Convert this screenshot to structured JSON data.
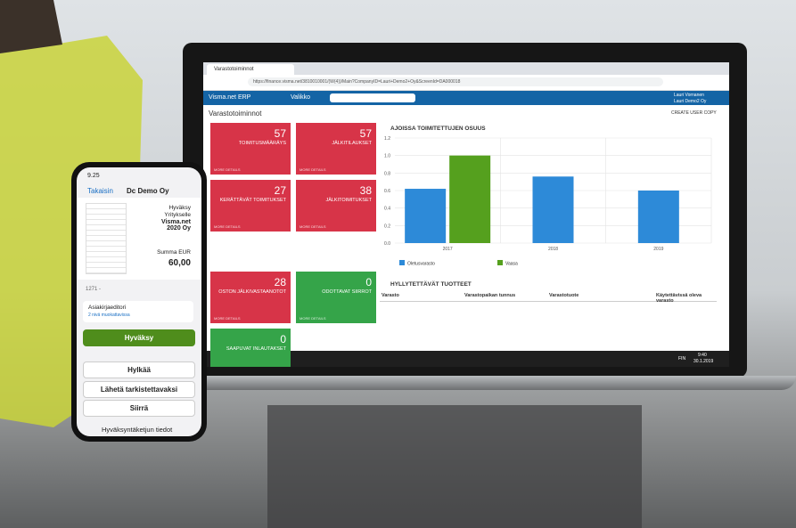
{
  "browser": {
    "tab": "Varastotoiminnot",
    "url": "https://finance.visma.net/3810010001/(W(4))/Main?CompanyID=Lauri+Demo2+Oy&ScreenId=DA000018"
  },
  "app": {
    "brand": "Visma.net ERP",
    "menu": "Valikko",
    "user": "Lauri Vornanen",
    "company": "Lauri Demo2 Oy",
    "page_title": "Varastotoiminnot",
    "copy": "CREATE USER COPY"
  },
  "tiles": [
    {
      "value": 57,
      "label": "TOIMITUSMÄÄRÄYS",
      "link": "MORE DETAILS"
    },
    {
      "value": 57,
      "label": "JÄLKITILAUKSET",
      "link": "MORE DETAILS"
    },
    {
      "value": 27,
      "label": "KERÄTTÄVÄT TOIMITUKSET",
      "link": "MORE DETAILS"
    },
    {
      "value": 38,
      "label": "JÄLKITOIMITUKSET",
      "link": "MORE DETAILS"
    },
    {
      "value": 28,
      "label": "OSTON JÄLKIVASTAANOTOT",
      "link": "MORE DETAILS"
    },
    {
      "value": 0,
      "label": "ODOTTAVAT SIIRROT",
      "link": "MORE DETAILS"
    },
    {
      "value": 0,
      "label": "SAAPUVAT INLAUTAKSET",
      "link": "MORE DETAILS"
    }
  ],
  "chart_data": {
    "type": "bar",
    "title": "AJOISSA TOIMITETTUJEN OSUUS",
    "categories": [
      "2017",
      "2018",
      "2019"
    ],
    "series": [
      {
        "name": "Oletusvarasto",
        "color": "#2d8ad8",
        "values": [
          0.62,
          0.76,
          0.6
        ]
      },
      {
        "name": "Vaasa",
        "color": "#55a01e",
        "values": [
          1.0,
          null,
          null
        ]
      }
    ],
    "ylim": [
      0,
      1.2
    ],
    "yticks": [
      {
        "value": 0,
        "label": "0.0"
      },
      0.2,
      0.4,
      0.6,
      0.8,
      {
        "value": 1,
        "label": "1.0"
      },
      1.2
    ],
    "grid": true
  },
  "table": {
    "title": "HYLLYTETTÄVÄT TUOTTEET",
    "columns": [
      "Varasto",
      "Varastopaikan tunnus",
      "Varastotuote",
      "Käytettävissä oleva varasto"
    ]
  },
  "taskbar": {
    "lang": "FIN",
    "time": "9:40",
    "date": "30.1.2019"
  },
  "phone": {
    "clock": "9.25",
    "back": "Takaisin",
    "title": "Dc Demo Oy",
    "approve_for": "Hyväksy",
    "to_company": "Yritykselle",
    "company": "Visma.net 2020 Oy",
    "sum_label": "Summa EUR",
    "sum": "60,00",
    "ref": "1271 -",
    "editor": "Asiakirjaeditori",
    "editor_sub": "2 nivä muokattavissa",
    "buttons": [
      "Hyväksy",
      "Hylkää",
      "Lähetä tarkistettavaksi",
      "Siirrä"
    ],
    "footer": "Hyväksyntäketjun tiedot"
  }
}
